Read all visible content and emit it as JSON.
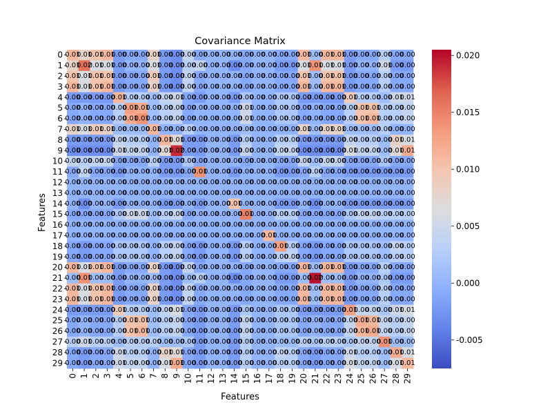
{
  "chart_data": {
    "type": "heatmap",
    "title": "Covariance Matrix",
    "xlabel": "Features",
    "ylabel": "Features",
    "row_labels": [
      "0",
      "1",
      "2",
      "3",
      "4",
      "5",
      "6",
      "7",
      "8",
      "9",
      "10",
      "11",
      "12",
      "13",
      "14",
      "15",
      "16",
      "17",
      "18",
      "19",
      "20",
      "21",
      "22",
      "23",
      "24",
      "25",
      "26",
      "27",
      "28",
      "29"
    ],
    "col_labels": [
      "0",
      "1",
      "2",
      "3",
      "4",
      "5",
      "6",
      "7",
      "8",
      "9",
      "10",
      "11",
      "12",
      "13",
      "14",
      "15",
      "16",
      "17",
      "18",
      "19",
      "20",
      "21",
      "22",
      "23",
      "24",
      "25",
      "26",
      "27",
      "28",
      "29"
    ],
    "colormap": "coolwarm",
    "vmin": -0.0075,
    "vmax": 0.0205,
    "colorbar_ticks": [
      "-0.005",
      "0.000",
      "0.005",
      "0.010",
      "0.015",
      "0.020"
    ],
    "colorbar_tick_values": [
      -0.005,
      0.0,
      0.005,
      0.01,
      0.015,
      0.02
    ],
    "annotation_decimals": 2,
    "values": [
      [
        0.011,
        0.008,
        0.01,
        0.011,
        -0.002,
        -0.001,
        -0.001,
        0.008,
        -0.002,
        -0.003,
        0.004,
        -0.001,
        0.0,
        0.0,
        0.0,
        -0.001,
        0.0,
        0.0,
        -0.001,
        -0.001,
        0.011,
        0.001,
        0.011,
        0.011,
        -0.002,
        -0.001,
        -0.001,
        0.003,
        -0.001,
        -0.001
      ],
      [
        0.008,
        0.016,
        0.006,
        0.006,
        -0.002,
        0.0,
        0.0,
        0.006,
        -0.002,
        -0.003,
        0.003,
        0.004,
        0.0,
        0.0,
        -0.003,
        -0.001,
        0.0,
        0.0,
        -0.002,
        -0.002,
        0.006,
        0.014,
        0.006,
        0.006,
        -0.002,
        0.0,
        0.0,
        0.005,
        -0.002,
        -0.002
      ],
      [
        0.01,
        0.006,
        0.01,
        0.01,
        -0.002,
        -0.001,
        -0.001,
        0.009,
        -0.002,
        -0.003,
        0.004,
        -0.001,
        0.0,
        0.0,
        0.0,
        -0.001,
        0.0,
        0.0,
        -0.001,
        -0.001,
        0.01,
        0.001,
        0.01,
        0.01,
        -0.002,
        -0.001,
        -0.001,
        0.003,
        -0.001,
        -0.001
      ],
      [
        0.011,
        0.006,
        0.01,
        0.011,
        -0.002,
        -0.001,
        -0.001,
        0.008,
        -0.002,
        -0.003,
        0.004,
        -0.001,
        0.0,
        0.0,
        0.0,
        -0.001,
        0.0,
        0.0,
        -0.001,
        -0.001,
        0.011,
        0.001,
        0.011,
        0.011,
        -0.002,
        -0.001,
        -0.001,
        0.003,
        -0.001,
        -0.001
      ],
      [
        -0.002,
        -0.002,
        -0.002,
        -0.002,
        0.011,
        0.003,
        0.003,
        0.001,
        0.004,
        0.005,
        -0.001,
        -0.002,
        0.0,
        0.0,
        -0.002,
        0.002,
        0.0,
        0.0,
        0.002,
        0.002,
        -0.002,
        -0.002,
        -0.002,
        -0.002,
        0.009,
        0.003,
        0.003,
        0.001,
        0.005,
        0.005
      ],
      [
        -0.001,
        0.0,
        -0.001,
        -0.001,
        0.003,
        0.013,
        0.012,
        0.001,
        0.003,
        0.004,
        -0.001,
        0.0,
        0.0,
        0.0,
        0.0,
        0.005,
        0.0,
        0.0,
        0.002,
        0.002,
        -0.001,
        0.0,
        -0.001,
        -0.001,
        0.003,
        0.01,
        0.01,
        0.003,
        0.003,
        0.004
      ],
      [
        -0.001,
        0.0,
        -0.001,
        -0.001,
        0.003,
        0.012,
        0.014,
        0.001,
        0.003,
        0.004,
        -0.001,
        0.0,
        0.0,
        0.0,
        0.0,
        0.005,
        0.0,
        0.0,
        0.002,
        0.002,
        -0.001,
        0.0,
        -0.001,
        -0.001,
        0.003,
        0.01,
        0.011,
        0.003,
        0.003,
        0.004
      ],
      [
        0.008,
        0.006,
        0.009,
        0.008,
        0.001,
        0.001,
        0.001,
        0.011,
        0.0,
        0.0,
        0.003,
        0.0,
        0.0,
        0.0,
        0.0,
        0.001,
        0.0,
        0.0,
        0.0,
        0.0,
        0.008,
        0.001,
        0.008,
        0.008,
        0.001,
        0.001,
        0.001,
        0.003,
        0.0,
        0.0
      ],
      [
        -0.002,
        -0.002,
        -0.002,
        -0.002,
        0.004,
        0.003,
        0.003,
        0.0,
        0.011,
        0.007,
        -0.002,
        -0.002,
        0.0,
        0.0,
        -0.002,
        0.003,
        0.0,
        0.0,
        0.003,
        0.003,
        -0.002,
        -0.002,
        -0.002,
        -0.002,
        0.004,
        0.003,
        0.003,
        0.001,
        0.008,
        0.006
      ],
      [
        -0.003,
        -0.003,
        -0.003,
        -0.003,
        0.005,
        0.004,
        0.004,
        0.0,
        0.007,
        0.019,
        -0.002,
        -0.002,
        0.0,
        0.0,
        -0.002,
        0.004,
        0.0,
        0.0,
        0.004,
        0.004,
        -0.003,
        -0.003,
        -0.003,
        -0.003,
        0.006,
        0.004,
        0.004,
        0.001,
        0.007,
        0.012
      ],
      [
        0.004,
        0.003,
        0.004,
        0.004,
        -0.001,
        -0.001,
        -0.001,
        0.003,
        -0.002,
        -0.002,
        0.002,
        -0.001,
        0.0,
        0.0,
        0.0,
        -0.001,
        0.0,
        0.0,
        -0.001,
        -0.001,
        0.004,
        0.001,
        0.004,
        0.004,
        -0.001,
        -0.001,
        -0.001,
        0.002,
        -0.001,
        -0.001
      ],
      [
        -0.001,
        0.004,
        -0.001,
        -0.001,
        -0.002,
        0.0,
        0.0,
        0.0,
        -0.002,
        -0.002,
        -0.001,
        0.014,
        0.0,
        0.0,
        -0.002,
        0.0,
        0.0,
        0.0,
        -0.002,
        -0.002,
        -0.001,
        0.003,
        -0.001,
        -0.001,
        -0.002,
        -0.002,
        -0.002,
        -0.002,
        -0.002,
        -0.002
      ],
      [
        0.0,
        0.0,
        0.0,
        0.0,
        0.0,
        0.0,
        0.0,
        0.0,
        0.0,
        0.0,
        0.0,
        0.0,
        0.0,
        0.0,
        0.0,
        0.0,
        0.0,
        0.0,
        0.0,
        0.0,
        0.0,
        0.0,
        0.0,
        0.0,
        0.0,
        0.0,
        0.0,
        0.0,
        0.0,
        0.0
      ],
      [
        0.0,
        0.0,
        0.0,
        0.0,
        0.0,
        0.0,
        0.0,
        0.0,
        0.0,
        0.0,
        0.0,
        0.0,
        0.0,
        0.0,
        0.0,
        0.0,
        0.0,
        0.0,
        0.0,
        0.0,
        0.0,
        0.0,
        0.0,
        0.0,
        0.0,
        0.0,
        0.0,
        0.0,
        0.0,
        0.0
      ],
      [
        0.0,
        -0.003,
        0.0,
        0.0,
        -0.002,
        0.0,
        0.0,
        0.0,
        -0.002,
        -0.002,
        0.0,
        -0.002,
        0.0,
        0.0,
        0.01,
        0.0,
        0.0,
        0.0,
        -0.002,
        -0.002,
        0.0,
        -0.003,
        0.0,
        0.0,
        -0.002,
        -0.002,
        -0.002,
        -0.002,
        -0.002,
        -0.002
      ],
      [
        -0.001,
        -0.001,
        -0.001,
        -0.001,
        0.002,
        0.005,
        0.005,
        0.001,
        0.003,
        0.004,
        -0.001,
        0.0,
        0.0,
        0.0,
        0.0,
        0.015,
        0.0,
        0.0,
        0.003,
        0.003,
        -0.001,
        -0.001,
        -0.001,
        -0.001,
        0.002,
        0.004,
        0.004,
        0.003,
        0.003,
        0.003
      ],
      [
        0.0,
        0.0,
        0.0,
        0.0,
        0.0,
        0.0,
        0.0,
        0.0,
        0.0,
        0.0,
        0.0,
        0.0,
        0.0,
        0.0,
        0.0,
        0.0,
        0.0,
        0.0,
        0.0,
        0.0,
        0.0,
        0.0,
        0.0,
        0.0,
        0.0,
        0.0,
        0.0,
        0.0,
        0.0,
        0.0
      ],
      [
        0.0,
        0.0,
        0.0,
        0.0,
        0.0,
        0.0,
        0.0,
        0.0,
        0.0,
        0.0,
        0.0,
        0.0,
        0.0,
        0.0,
        0.0,
        0.0,
        0.0,
        0.011,
        0.0,
        0.0,
        0.0,
        0.0,
        0.0,
        0.0,
        0.0,
        0.0,
        0.0,
        0.0,
        0.0,
        0.0
      ],
      [
        -0.001,
        -0.002,
        -0.001,
        -0.001,
        0.002,
        0.002,
        0.002,
        0.0,
        0.003,
        0.004,
        -0.001,
        -0.002,
        0.0,
        0.0,
        -0.002,
        0.003,
        0.0,
        0.0,
        0.013,
        0.003,
        -0.001,
        -0.002,
        -0.001,
        -0.001,
        0.002,
        0.002,
        0.002,
        0.001,
        0.004,
        0.003
      ],
      [
        -0.001,
        -0.002,
        -0.001,
        -0.001,
        0.002,
        0.002,
        0.002,
        0.0,
        0.003,
        0.004,
        -0.001,
        -0.002,
        0.0,
        0.0,
        -0.002,
        0.003,
        0.0,
        0.0,
        0.003,
        0.004,
        -0.001,
        -0.002,
        -0.001,
        -0.001,
        0.002,
        0.002,
        0.002,
        0.001,
        0.003,
        0.003
      ],
      [
        0.011,
        0.006,
        0.01,
        0.011,
        -0.002,
        -0.001,
        -0.001,
        0.008,
        -0.002,
        -0.003,
        0.004,
        -0.001,
        0.0,
        0.0,
        0.0,
        -0.001,
        0.0,
        0.0,
        -0.001,
        -0.001,
        0.011,
        0.001,
        0.011,
        0.011,
        -0.002,
        -0.001,
        -0.001,
        0.003,
        -0.001,
        -0.001
      ],
      [
        0.001,
        0.014,
        0.001,
        0.001,
        -0.002,
        0.0,
        0.0,
        0.001,
        -0.002,
        -0.003,
        0.001,
        0.003,
        0.0,
        0.0,
        -0.003,
        -0.001,
        0.0,
        0.0,
        -0.002,
        -0.002,
        0.001,
        0.02,
        0.001,
        0.001,
        -0.002,
        0.0,
        0.0,
        0.002,
        -0.002,
        -0.002
      ],
      [
        0.011,
        0.006,
        0.01,
        0.011,
        -0.002,
        -0.001,
        -0.001,
        0.008,
        -0.002,
        -0.003,
        0.004,
        -0.001,
        0.0,
        0.0,
        0.0,
        -0.001,
        0.0,
        0.0,
        -0.001,
        -0.001,
        0.011,
        0.001,
        0.011,
        0.011,
        -0.002,
        -0.001,
        -0.001,
        0.003,
        -0.001,
        -0.001
      ],
      [
        0.011,
        0.006,
        0.01,
        0.011,
        -0.002,
        -0.001,
        -0.001,
        0.008,
        -0.002,
        -0.003,
        0.004,
        -0.001,
        0.0,
        0.0,
        0.0,
        -0.001,
        0.0,
        0.0,
        -0.001,
        -0.001,
        0.011,
        0.001,
        0.011,
        0.011,
        -0.002,
        -0.001,
        -0.001,
        0.003,
        -0.001,
        -0.001
      ],
      [
        -0.002,
        -0.002,
        -0.002,
        -0.002,
        0.009,
        0.003,
        0.003,
        0.001,
        0.004,
        0.006,
        -0.001,
        -0.002,
        0.0,
        0.0,
        -0.002,
        0.002,
        0.0,
        0.0,
        0.002,
        0.002,
        -0.002,
        -0.002,
        -0.002,
        -0.002,
        0.013,
        0.004,
        0.004,
        0.002,
        0.005,
        0.006
      ],
      [
        -0.001,
        0.0,
        -0.001,
        -0.001,
        0.003,
        0.01,
        0.01,
        0.001,
        0.003,
        0.004,
        -0.001,
        -0.002,
        0.0,
        0.0,
        -0.002,
        0.004,
        0.0,
        0.0,
        0.002,
        0.002,
        -0.001,
        0.0,
        -0.001,
        -0.001,
        0.004,
        0.012,
        0.011,
        0.004,
        0.003,
        0.004
      ],
      [
        -0.001,
        0.0,
        -0.001,
        -0.001,
        0.003,
        0.01,
        0.011,
        0.001,
        0.003,
        0.004,
        -0.001,
        -0.002,
        0.0,
        0.0,
        -0.002,
        0.004,
        0.0,
        0.0,
        0.002,
        0.002,
        -0.001,
        0.0,
        -0.001,
        -0.001,
        0.004,
        0.011,
        0.012,
        0.004,
        0.003,
        0.004
      ],
      [
        0.003,
        0.005,
        0.003,
        0.003,
        0.001,
        0.003,
        0.003,
        0.003,
        0.001,
        0.001,
        0.002,
        -0.002,
        0.0,
        0.0,
        -0.002,
        0.003,
        0.0,
        0.0,
        0.001,
        0.001,
        0.003,
        0.002,
        0.003,
        0.003,
        0.002,
        0.004,
        0.004,
        0.014,
        0.001,
        0.001
      ],
      [
        -0.001,
        -0.002,
        -0.001,
        -0.001,
        0.005,
        0.003,
        0.003,
        0.0,
        0.008,
        0.007,
        -0.001,
        -0.002,
        0.0,
        0.0,
        -0.002,
        0.003,
        0.0,
        0.0,
        0.004,
        0.003,
        -0.001,
        -0.002,
        -0.001,
        -0.001,
        0.005,
        0.003,
        0.003,
        0.001,
        0.012,
        0.006
      ],
      [
        -0.001,
        -0.002,
        -0.001,
        -0.001,
        0.005,
        0.004,
        0.004,
        0.0,
        0.006,
        0.012,
        -0.001,
        -0.002,
        0.0,
        0.0,
        -0.002,
        0.003,
        0.0,
        0.0,
        0.003,
        0.003,
        -0.001,
        -0.002,
        -0.001,
        -0.001,
        0.006,
        0.004,
        0.004,
        0.001,
        0.006,
        0.011
      ]
    ]
  }
}
